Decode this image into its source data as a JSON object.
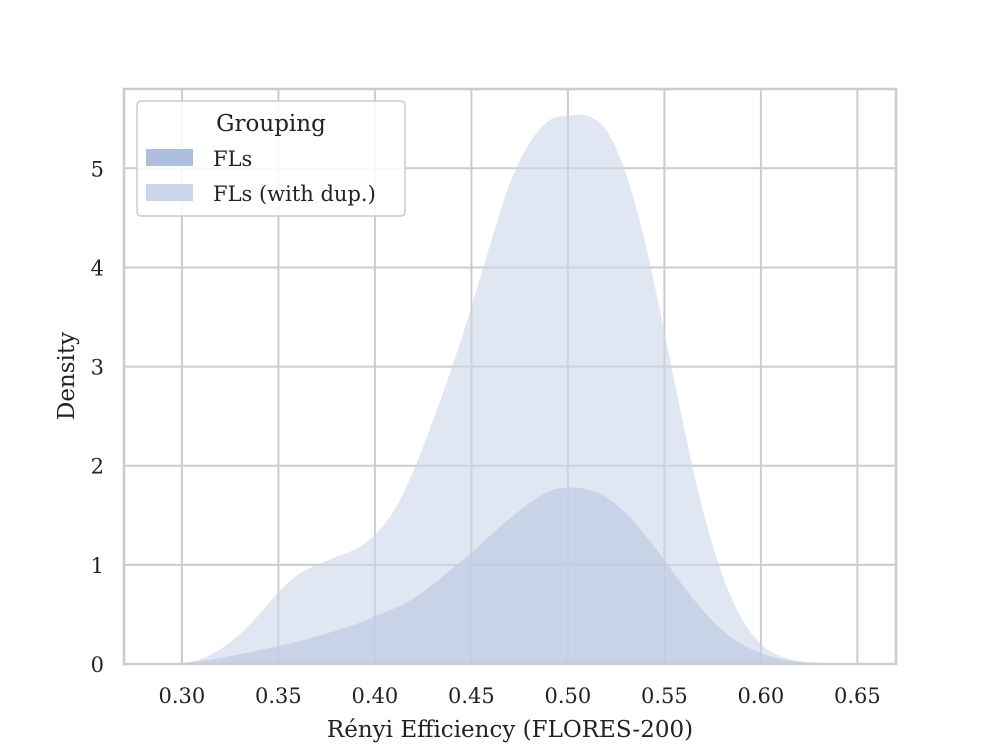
{
  "chart_data": {
    "type": "area",
    "xlabel": "Rényi Efficiency (FLORES-200)",
    "ylabel": "Density",
    "xlim": [
      0.27,
      0.67
    ],
    "ylim": [
      0,
      5.8
    ],
    "x_ticks": [
      "0.30",
      "0.35",
      "0.40",
      "0.45",
      "0.50",
      "0.55",
      "0.60",
      "0.65"
    ],
    "y_ticks": [
      "0",
      "1",
      "2",
      "3",
      "4",
      "5"
    ],
    "grid": true,
    "legend": {
      "title": "Grouping",
      "position": "top-left",
      "entries": [
        "FLs",
        "FLs (with dup.)"
      ]
    },
    "series": [
      {
        "name": "FLs",
        "color": "#aebfdd",
        "opacity": 0.75,
        "x": [
          0.29,
          0.3,
          0.31,
          0.32,
          0.33,
          0.35,
          0.37,
          0.39,
          0.4,
          0.41,
          0.42,
          0.43,
          0.44,
          0.45,
          0.46,
          0.47,
          0.48,
          0.49,
          0.5,
          0.51,
          0.52,
          0.53,
          0.54,
          0.55,
          0.56,
          0.57,
          0.58,
          0.59,
          0.6,
          0.61,
          0.62,
          0.63,
          0.64,
          0.65
        ],
        "values": [
          0.0,
          0.01,
          0.03,
          0.06,
          0.1,
          0.18,
          0.28,
          0.4,
          0.48,
          0.56,
          0.66,
          0.8,
          0.96,
          1.12,
          1.3,
          1.47,
          1.62,
          1.74,
          1.78,
          1.76,
          1.68,
          1.52,
          1.3,
          1.05,
          0.78,
          0.54,
          0.34,
          0.2,
          0.11,
          0.05,
          0.02,
          0.01,
          0.005,
          0.0
        ]
      },
      {
        "name": "FLs (with dup.)",
        "color": "#ccd6ea",
        "opacity": 0.6,
        "x": [
          0.29,
          0.3,
          0.31,
          0.32,
          0.33,
          0.34,
          0.35,
          0.36,
          0.37,
          0.38,
          0.39,
          0.4,
          0.41,
          0.42,
          0.43,
          0.44,
          0.45,
          0.46,
          0.47,
          0.48,
          0.49,
          0.5,
          0.51,
          0.52,
          0.53,
          0.54,
          0.55,
          0.56,
          0.57,
          0.58,
          0.59,
          0.6,
          0.61,
          0.62,
          0.63,
          0.64,
          0.65
        ],
        "values": [
          0.0,
          0.01,
          0.05,
          0.15,
          0.3,
          0.5,
          0.72,
          0.9,
          1.0,
          1.08,
          1.16,
          1.3,
          1.55,
          1.95,
          2.45,
          3.0,
          3.6,
          4.25,
          4.85,
          5.25,
          5.48,
          5.53,
          5.53,
          5.38,
          4.95,
          4.25,
          3.35,
          2.4,
          1.55,
          0.9,
          0.46,
          0.2,
          0.08,
          0.03,
          0.01,
          0.005,
          0.0
        ]
      }
    ]
  }
}
